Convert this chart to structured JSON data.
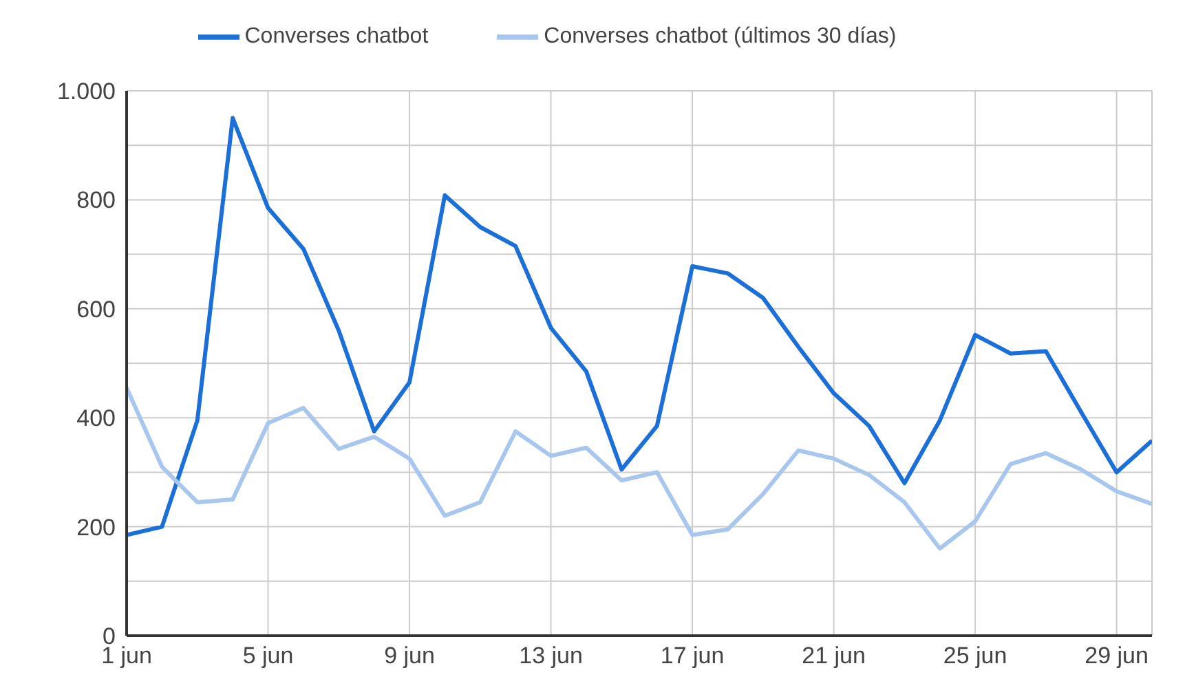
{
  "chart_data": {
    "type": "line",
    "x": [
      "--06-01",
      "--06-02",
      "--06-03",
      "--06-04",
      "--06-05",
      "--06-06",
      "--06-07",
      "--06-08",
      "--06-09",
      "--06-10",
      "--06-11",
      "--06-12",
      "--06-13",
      "--06-14",
      "--06-15",
      "--06-16",
      "--06-17",
      "--06-18",
      "--06-19",
      "--06-20",
      "--06-21",
      "--06-22",
      "--06-23",
      "--06-24",
      "--06-25",
      "--06-26",
      "--06-27",
      "--06-28",
      "--06-29",
      "--06-30"
    ],
    "series": [
      {
        "name": "Converses chatbot",
        "color": "#1a6fd8",
        "values": [
          185,
          200,
          395,
          950,
          785,
          710,
          560,
          375,
          465,
          808,
          750,
          715,
          565,
          485,
          305,
          385,
          678,
          665,
          620,
          530,
          445,
          385,
          280,
          395,
          552,
          518,
          522,
          410,
          300,
          358
        ]
      },
      {
        "name": "Converses chatbot (últimos 30 días)",
        "color": "#a9c6ee",
        "values": [
          455,
          310,
          245,
          250,
          390,
          418,
          343,
          365,
          325,
          220,
          245,
          375,
          330,
          345,
          285,
          300,
          185,
          195,
          260,
          340,
          325,
          295,
          245,
          160,
          210,
          315,
          335,
          305,
          265,
          242
        ]
      }
    ],
    "xlim": [
      "--06-01",
      "--06-30"
    ],
    "xticks": [
      {
        "value": "--06-01",
        "label": "1 jun"
      },
      {
        "value": "--06-05",
        "label": "5 jun"
      },
      {
        "value": "--06-09",
        "label": "9 jun"
      },
      {
        "value": "--06-13",
        "label": "13 jun"
      },
      {
        "value": "--06-17",
        "label": "17 jun"
      },
      {
        "value": "--06-21",
        "label": "21 jun"
      },
      {
        "value": "--06-25",
        "label": "25 jun"
      },
      {
        "value": "--06-29",
        "label": "29 jun"
      }
    ],
    "ylim": [
      0,
      1000
    ],
    "yticks": [
      0,
      {
        "value": 100,
        "label": null
      },
      200,
      {
        "value": 300,
        "label": null
      },
      400,
      {
        "value": 500,
        "label": null
      },
      600,
      {
        "value": 700,
        "label": null
      },
      800,
      {
        "value": 900,
        "label": null
      },
      {
        "value": 1000,
        "label": "1.000"
      }
    ],
    "grid": true,
    "legend": "top",
    "marker": "none",
    "line_style": "solid"
  }
}
